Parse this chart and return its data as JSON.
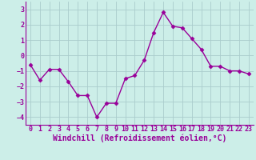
{
  "x": [
    0,
    1,
    2,
    3,
    4,
    5,
    6,
    7,
    8,
    9,
    10,
    11,
    12,
    13,
    14,
    15,
    16,
    17,
    18,
    19,
    20,
    21,
    22,
    23
  ],
  "y": [
    -0.6,
    -1.6,
    -0.9,
    -0.9,
    -1.7,
    -2.6,
    -2.6,
    -4.0,
    -3.1,
    -3.1,
    -1.5,
    -1.3,
    -0.3,
    1.5,
    2.8,
    1.9,
    1.8,
    1.1,
    0.4,
    -0.7,
    -0.7,
    -1.0,
    -1.0,
    -1.2
  ],
  "xlabel": "Windchill (Refroidissement éolien,°C)",
  "line_color": "#990099",
  "marker": "D",
  "markersize": 2.5,
  "linewidth": 1.0,
  "background_color": "#cceee8",
  "grid_color": "#aacccc",
  "ylim": [
    -4.5,
    3.5
  ],
  "xlim": [
    -0.5,
    23.5
  ],
  "yticks": [
    -4,
    -3,
    -2,
    -1,
    0,
    1,
    2,
    3
  ],
  "xticks": [
    0,
    1,
    2,
    3,
    4,
    5,
    6,
    7,
    8,
    9,
    10,
    11,
    12,
    13,
    14,
    15,
    16,
    17,
    18,
    19,
    20,
    21,
    22,
    23
  ],
  "tick_color": "#990099",
  "label_color": "#990099",
  "tick_fontsize": 6,
  "xlabel_fontsize": 7
}
